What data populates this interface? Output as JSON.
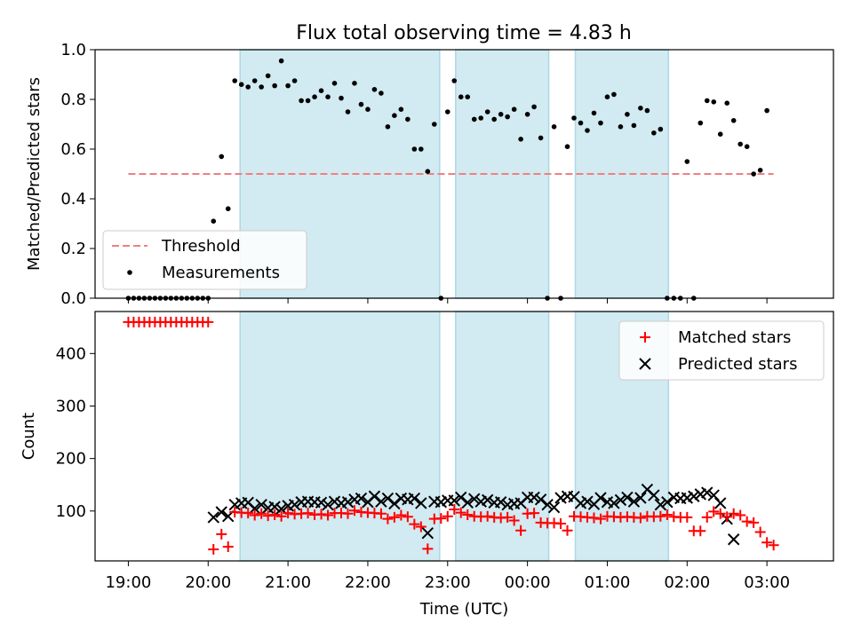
{
  "title": "Flux total observing time = 4.83 h",
  "colors": {
    "band": "#add8e6",
    "threshold": "#f08080",
    "matched": "#ff0000",
    "predicted": "#000000",
    "measure": "#000000"
  },
  "chart_data": [
    {
      "type": "scatter",
      "ylabel": "Matched/Predicted stars",
      "ylim": [
        0,
        1
      ],
      "xlim": [
        "18:35",
        "03:50"
      ],
      "yticks": [
        "0.0",
        "0.2",
        "0.4",
        "0.6",
        "0.8",
        "1.0"
      ],
      "legend": {
        "placement": "lower-left",
        "entries": [
          "Threshold",
          "Measurements"
        ]
      },
      "bands": [
        [
          "20:24",
          "22:54"
        ],
        [
          "23:06",
          "00:16"
        ],
        [
          "00:36",
          "01:46"
        ]
      ],
      "threshold": {
        "name": "Threshold",
        "y": 0.5,
        "x": [
          "19:00",
          "03:05"
        ]
      },
      "series": [
        {
          "name": "Measurements",
          "x": [
            "19:00",
            "19:04",
            "19:08",
            "19:12",
            "19:16",
            "19:20",
            "19:24",
            "19:28",
            "19:32",
            "19:36",
            "19:40",
            "19:44",
            "19:48",
            "19:52",
            "19:56",
            "20:00",
            "20:04",
            "20:10",
            "20:15",
            "20:20",
            "20:25",
            "20:30",
            "20:35",
            "20:40",
            "20:45",
            "20:50",
            "20:55",
            "21:00",
            "21:05",
            "21:10",
            "21:15",
            "21:20",
            "21:25",
            "21:30",
            "21:35",
            "21:40",
            "21:45",
            "21:50",
            "21:55",
            "22:00",
            "22:05",
            "22:10",
            "22:15",
            "22:20",
            "22:25",
            "22:30",
            "22:35",
            "22:40",
            "22:45",
            "22:50",
            "22:55",
            "23:00",
            "23:05",
            "23:10",
            "23:15",
            "23:20",
            "23:25",
            "23:30",
            "23:35",
            "23:40",
            "23:45",
            "23:50",
            "23:55",
            "00:00",
            "00:05",
            "00:10",
            "00:15",
            "00:20",
            "00:25",
            "00:30",
            "00:35",
            "00:40",
            "00:45",
            "00:50",
            "00:55",
            "01:00",
            "01:05",
            "01:10",
            "01:15",
            "01:20",
            "01:25",
            "01:30",
            "01:35",
            "01:40",
            "01:45",
            "01:50",
            "01:55",
            "02:00",
            "02:05",
            "02:10",
            "02:15",
            "02:20",
            "02:25",
            "02:30",
            "02:35",
            "02:40",
            "02:45",
            "02:50",
            "02:55",
            "03:00",
            "03:05"
          ],
          "y": [
            0,
            0,
            0,
            0,
            0,
            0,
            0,
            0,
            0,
            0,
            0,
            0,
            0,
            0,
            0,
            0,
            0.31,
            0.57,
            0.36,
            0.875,
            0.86,
            0.85,
            0.875,
            0.85,
            0.895,
            0.855,
            0.955,
            0.855,
            0.875,
            0.795,
            0.795,
            0.81,
            0.835,
            0.81,
            0.865,
            0.805,
            0.75,
            0.865,
            0.78,
            0.76,
            0.84,
            0.825,
            0.69,
            0.735,
            0.76,
            0.72,
            0.6,
            0.6,
            0.51,
            0.7,
            0.0,
            0.75,
            0.875,
            0.81,
            0.81,
            0.72,
            0.725,
            0.75,
            0.72,
            0.74,
            0.73,
            0.76,
            0.64,
            0.74,
            0.77,
            0.645,
            0.0,
            0.69,
            0.0,
            0.61,
            0.725,
            0.705,
            0.675,
            0.745,
            0.705,
            0.81,
            0.82,
            0.69,
            0.74,
            0.695,
            0.765,
            0.755,
            0.665,
            0.68,
            0.0,
            0.0,
            0.0,
            0.55,
            0.0,
            0.705,
            0.795,
            0.79,
            0.66,
            0.785,
            0.715,
            0.62,
            0.61,
            0.5,
            0.515,
            0.755,
            null
          ]
        }
      ]
    },
    {
      "type": "scatter",
      "xlabel": "Time (UTC)",
      "ylabel": "Count",
      "ylim": [
        5,
        480
      ],
      "xlim": [
        "18:35",
        "03:50"
      ],
      "xticks": [
        "19:00",
        "20:00",
        "21:00",
        "22:00",
        "23:00",
        "00:00",
        "01:00",
        "02:00",
        "03:00"
      ],
      "yticks": [
        "100",
        "200",
        "300",
        "400"
      ],
      "legend": {
        "placement": "top-right",
        "entries": [
          "Matched stars",
          "Predicted stars"
        ]
      },
      "bands": [
        [
          "20:24",
          "22:54"
        ],
        [
          "23:06",
          "00:16"
        ],
        [
          "00:36",
          "01:46"
        ]
      ],
      "series": [
        {
          "name": "Matched stars",
          "marker": "plus",
          "x": [
            "19:00",
            "19:04",
            "19:08",
            "19:12",
            "19:16",
            "19:20",
            "19:24",
            "19:28",
            "19:32",
            "19:36",
            "19:40",
            "19:44",
            "19:48",
            "19:52",
            "19:56",
            "20:00",
            "20:04",
            "20:10",
            "20:15",
            "20:20",
            "20:25",
            "20:30",
            "20:35",
            "20:40",
            "20:45",
            "20:50",
            "20:55",
            "21:00",
            "21:05",
            "21:10",
            "21:15",
            "21:20",
            "21:25",
            "21:30",
            "21:35",
            "21:40",
            "21:45",
            "21:50",
            "21:55",
            "22:00",
            "22:05",
            "22:10",
            "22:15",
            "22:20",
            "22:25",
            "22:30",
            "22:35",
            "22:40",
            "22:45",
            "22:50",
            "22:55",
            "23:00",
            "23:05",
            "23:10",
            "23:15",
            "23:20",
            "23:25",
            "23:30",
            "23:35",
            "23:40",
            "23:45",
            "23:50",
            "23:55",
            "00:00",
            "00:05",
            "00:10",
            "00:15",
            "00:20",
            "00:25",
            "00:30",
            "00:35",
            "00:40",
            "00:45",
            "00:50",
            "00:55",
            "01:00",
            "01:05",
            "01:10",
            "01:15",
            "01:20",
            "01:25",
            "01:30",
            "01:35",
            "01:40",
            "01:45",
            "01:50",
            "01:55",
            "02:00",
            "02:05",
            "02:10",
            "02:15",
            "02:20",
            "02:25",
            "02:30",
            "02:35",
            "02:40",
            "02:45",
            "02:50",
            "02:55",
            "03:00",
            "03:05"
          ],
          "y": [
            460,
            460,
            460,
            460,
            460,
            460,
            460,
            460,
            460,
            460,
            460,
            460,
            460,
            460,
            460,
            460,
            27,
            56,
            32,
            98,
            97,
            96,
            92,
            95,
            91,
            93,
            90,
            96,
            94,
            95,
            96,
            93,
            94,
            92,
            96,
            96,
            95,
            101,
            98,
            97,
            96,
            95,
            85,
            88,
            92,
            89,
            75,
            70,
            28,
            85,
            86,
            90,
            103,
            97,
            93,
            90,
            89,
            90,
            88,
            87,
            88,
            82,
            63,
            95,
            96,
            78,
            77,
            77,
            76,
            63,
            90,
            89,
            88,
            87,
            85,
            90,
            89,
            88,
            89,
            88,
            87,
            90,
            89,
            90,
            93,
            89,
            88,
            88,
            62,
            62,
            88,
            99,
            95,
            89,
            95,
            92,
            80,
            78,
            60,
            40,
            35
          ]
        },
        {
          "name": "Predicted stars",
          "marker": "cross",
          "x": [
            "20:04",
            "20:10",
            "20:15",
            "20:20",
            "20:25",
            "20:30",
            "20:35",
            "20:40",
            "20:45",
            "20:50",
            "20:55",
            "21:00",
            "21:05",
            "21:10",
            "21:15",
            "21:20",
            "21:25",
            "21:30",
            "21:35",
            "21:40",
            "21:45",
            "21:50",
            "21:55",
            "22:00",
            "22:05",
            "22:10",
            "22:15",
            "22:20",
            "22:25",
            "22:30",
            "22:35",
            "22:40",
            "22:45",
            "22:50",
            "22:55",
            "23:00",
            "23:05",
            "23:10",
            "23:15",
            "23:20",
            "23:25",
            "23:30",
            "23:35",
            "23:40",
            "23:45",
            "23:50",
            "23:55",
            "00:00",
            "00:05",
            "00:10",
            "00:15",
            "00:20",
            "00:25",
            "00:30",
            "00:35",
            "00:40",
            "00:45",
            "00:50",
            "00:55",
            "01:00",
            "01:05",
            "01:10",
            "01:15",
            "01:20",
            "01:25",
            "01:30",
            "01:35",
            "01:40",
            "01:45",
            "01:50",
            "01:55",
            "02:00",
            "02:05",
            "02:10",
            "02:15",
            "02:20",
            "02:25",
            "02:30",
            "02:35",
            "02:40",
            "02:45",
            "02:50",
            "02:55",
            "03:00",
            "03:05"
          ],
          "y": [
            88,
            98,
            90,
            112,
            115,
            116,
            105,
            112,
            106,
            108,
            104,
            110,
            112,
            117,
            118,
            117,
            116,
            112,
            118,
            115,
            117,
            122,
            124,
            117,
            128,
            118,
            124,
            114,
            124,
            122,
            124,
            115,
            58,
            118,
            117,
            120,
            120,
            126,
            116,
            123,
            118,
            121,
            116,
            117,
            112,
            114,
            115,
            126,
            126,
            122,
            112,
            107,
            125,
            128,
            127,
            115,
            118,
            113,
            125,
            117,
            115,
            121,
            126,
            118,
            125,
            141,
            130,
            112,
            117,
            126,
            124,
            125,
            128,
            132,
            135,
            130,
            115,
            85,
            46,
            null,
            null,
            null,
            null,
            null,
            null
          ]
        }
      ]
    }
  ]
}
